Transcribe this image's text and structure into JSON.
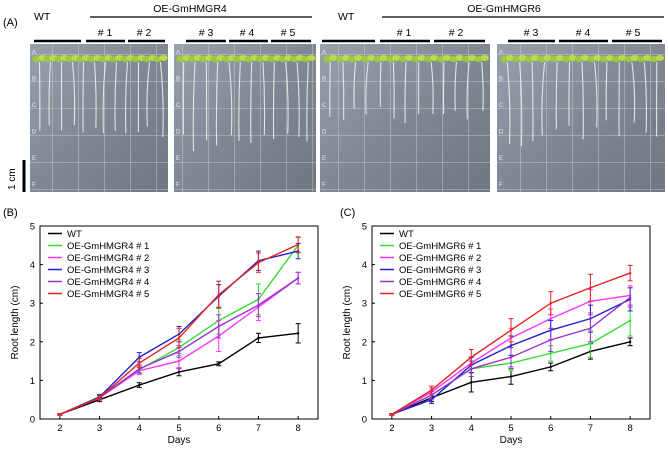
{
  "panel_a": {
    "label": "(A)",
    "scale_label": "1 cm",
    "left_group": {
      "wt": "WT",
      "oe": "OE-GmHMGR4",
      "lines": [
        "# 1",
        "# 2",
        "# 3",
        "# 4",
        "# 5"
      ]
    },
    "right_group": {
      "wt": "WT",
      "oe": "OE-GmHMGR6",
      "lines": [
        "# 1",
        "# 2",
        "# 3",
        "# 4",
        "# 5"
      ]
    },
    "row_letters": [
      "A",
      "B",
      "C",
      "D",
      "E",
      "F"
    ]
  },
  "colors": {
    "WT": "#000000",
    "L1": "#33dd33",
    "L2": "#ff33ff",
    "L3": "#2222cc",
    "L4": "#9933cc",
    "L5": "#e8231f"
  },
  "chart_data": [
    {
      "type": "line",
      "panel_label": "(B)",
      "xlabel": "Days",
      "ylabel": "Root length (cm)",
      "x": [
        2,
        3,
        4,
        5,
        6,
        7,
        8
      ],
      "xlim": [
        1.5,
        8.5
      ],
      "ylim": [
        0,
        5
      ],
      "xticks": [
        2,
        3,
        4,
        5,
        6,
        7,
        8
      ],
      "yticks": [
        0,
        1,
        2,
        3,
        4,
        5
      ],
      "legend_position": "top-left",
      "series": [
        {
          "name": "WT",
          "key": "WT",
          "values": [
            0.12,
            0.5,
            0.88,
            1.22,
            1.43,
            2.1,
            2.22
          ],
          "errors": [
            0.02,
            0.05,
            0.06,
            0.1,
            0.05,
            0.12,
            0.25
          ]
        },
        {
          "name": "OE-GmHMGR4 # 1",
          "key": "L1",
          "values": [
            0.12,
            0.58,
            1.28,
            1.85,
            2.55,
            3.1,
            4.5
          ],
          "errors": [
            0.02,
            0.06,
            0.1,
            0.2,
            0.35,
            0.4,
            0.2
          ]
        },
        {
          "name": "OE-GmHMGR4 # 2",
          "key": "L2",
          "values": [
            0.12,
            0.55,
            1.25,
            1.5,
            2.15,
            2.9,
            3.65
          ],
          "errors": [
            0.02,
            0.05,
            0.1,
            0.2,
            0.4,
            0.35,
            0.15
          ]
        },
        {
          "name": "OE-GmHMGR4 # 3",
          "key": "L3",
          "values": [
            0.12,
            0.57,
            1.6,
            2.2,
            3.18,
            4.1,
            4.35
          ],
          "errors": [
            0.02,
            0.06,
            0.12,
            0.2,
            0.3,
            0.25,
            0.2
          ]
        },
        {
          "name": "OE-GmHMGR4 # 4",
          "key": "L4",
          "values": [
            0.12,
            0.55,
            1.3,
            1.75,
            2.4,
            2.95,
            3.65
          ],
          "errors": [
            0.02,
            0.05,
            0.1,
            0.15,
            0.3,
            0.3,
            0.15
          ]
        },
        {
          "name": "OE-GmHMGR4 # 5",
          "key": "L5",
          "values": [
            0.12,
            0.55,
            1.45,
            2.1,
            3.22,
            4.05,
            4.52
          ],
          "errors": [
            0.02,
            0.06,
            0.12,
            0.25,
            0.35,
            0.25,
            0.2
          ]
        }
      ]
    },
    {
      "type": "line",
      "panel_label": "(C)",
      "xlabel": "Days",
      "ylabel": "Root length (cm)",
      "x": [
        2,
        3,
        4,
        5,
        6,
        7,
        8
      ],
      "xlim": [
        1.5,
        8.5
      ],
      "ylim": [
        0,
        5
      ],
      "xticks": [
        2,
        3,
        4,
        5,
        6,
        7,
        8
      ],
      "yticks": [
        0,
        1,
        2,
        3,
        4,
        5
      ],
      "legend_position": "top-left",
      "series": [
        {
          "name": "WT",
          "key": "WT",
          "values": [
            0.12,
            0.55,
            0.95,
            1.1,
            1.35,
            1.75,
            2.0
          ],
          "errors": [
            0.02,
            0.1,
            0.25,
            0.2,
            0.1,
            0.2,
            0.1
          ]
        },
        {
          "name": "OE-GmHMGR6 # 1",
          "key": "L1",
          "values": [
            0.12,
            0.62,
            1.3,
            1.45,
            1.7,
            1.95,
            2.55
          ],
          "errors": [
            0.02,
            0.1,
            0.2,
            0.2,
            0.2,
            0.35,
            0.4
          ]
        },
        {
          "name": "OE-GmHMGR6 # 2",
          "key": "L2",
          "values": [
            0.12,
            0.7,
            1.45,
            2.1,
            2.6,
            3.05,
            3.2
          ],
          "errors": [
            0.02,
            0.1,
            0.15,
            0.25,
            0.25,
            0.3,
            0.25
          ]
        },
        {
          "name": "OE-GmHMGR6 # 3",
          "key": "L3",
          "values": [
            0.12,
            0.5,
            1.4,
            1.9,
            2.3,
            2.6,
            3.1
          ],
          "errors": [
            0.02,
            0.1,
            0.2,
            0.25,
            0.25,
            0.35,
            0.3
          ]
        },
        {
          "name": "OE-GmHMGR6 # 4",
          "key": "L4",
          "values": [
            0.12,
            0.62,
            1.3,
            1.6,
            2.05,
            2.35,
            3.15
          ],
          "errors": [
            0.02,
            0.1,
            0.2,
            0.25,
            0.3,
            0.35,
            0.25
          ]
        },
        {
          "name": "OE-GmHMGR6 # 5",
          "key": "L5",
          "values": [
            0.12,
            0.75,
            1.6,
            2.3,
            3.0,
            3.4,
            3.78
          ],
          "errors": [
            0.02,
            0.1,
            0.2,
            0.3,
            0.3,
            0.35,
            0.2
          ]
        }
      ]
    }
  ]
}
